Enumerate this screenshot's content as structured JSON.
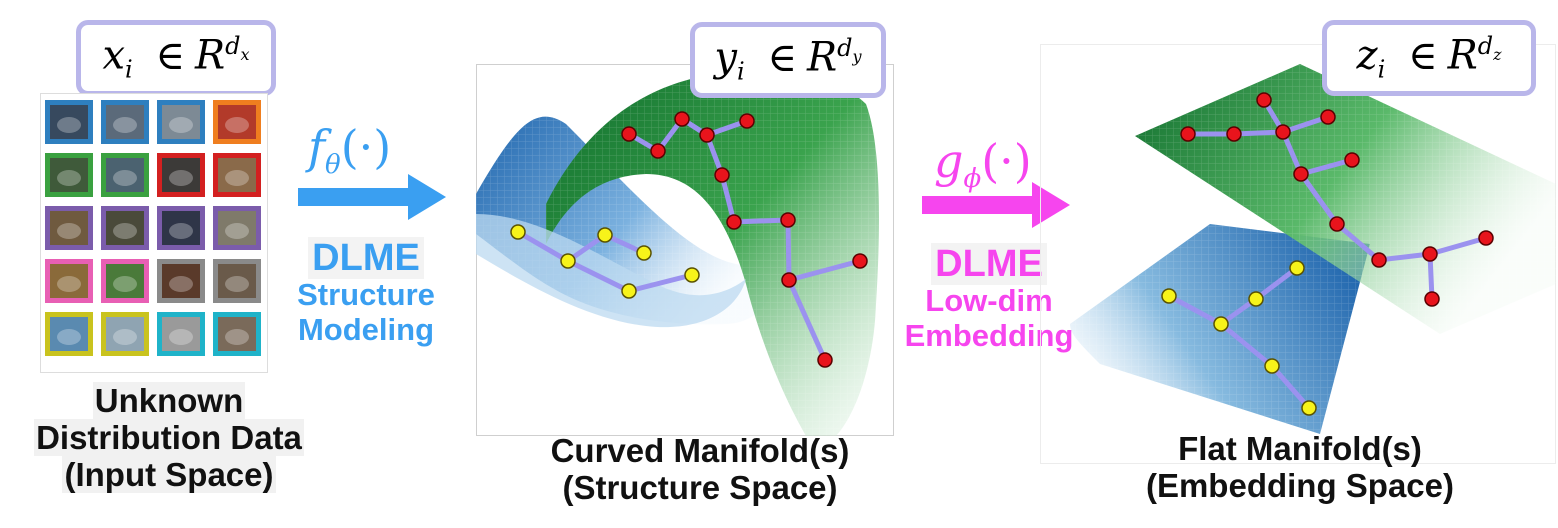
{
  "input_space": {
    "formula_var": "x",
    "formula_sub": "i",
    "formula_in": "∈",
    "formula_set": "R",
    "formula_exp_base": "d",
    "formula_exp_sub": "x",
    "caption_line1": "Unknown",
    "caption_line2": "Distribution Data",
    "caption_line3": "(Input Space)"
  },
  "arrow_f": {
    "func": "f",
    "param": "θ",
    "args": "(·)",
    "color": "#3a9ff1",
    "label_line1": "DLME",
    "label_line2": "Structure",
    "label_line3": "Modeling"
  },
  "structure_space": {
    "formula_var": "y",
    "formula_sub": "i",
    "formula_in": "∈",
    "formula_set": "R",
    "formula_exp_base": "d",
    "formula_exp_sub": "y",
    "caption_line1": "Curved Manifold(s)",
    "caption_line2": "(Structure Space)"
  },
  "arrow_g": {
    "func": "g",
    "param": "ϕ",
    "args": "(·)",
    "color": "#f645ee",
    "label_line1": "DLME",
    "label_line2": "Low-dim",
    "label_line3": "Embedding"
  },
  "embedding_space": {
    "formula_var": "z",
    "formula_sub": "i",
    "formula_in": "∈",
    "formula_set": "R",
    "formula_exp_base": "d",
    "formula_exp_sub": "z",
    "caption_line1": "Flat Manifold(s)",
    "caption_line2": "(Embedding Space)"
  },
  "colors": {
    "formula_border": "#b9b6ea",
    "green_manifold": "#1f8a3a",
    "blue_manifold": "#2b79c2",
    "red_node": "#e8141c",
    "yellow_node": "#f7f31a",
    "edge": "#9b92ef"
  },
  "image_grid_frame_colors": [
    "#2e7fbf",
    "#2e7fbf",
    "#2e7fbf",
    "#ef7e1f",
    "#3aa140",
    "#3aa140",
    "#d32020",
    "#d32020",
    "#7b5cab",
    "#7b5cab",
    "#7b5cab",
    "#7b5cab",
    "#e85fb4",
    "#e85fb4",
    "#8a8a8a",
    "#8a8a8a",
    "#c9c31e",
    "#c9c31e",
    "#1fb3c9",
    "#1fb3c9"
  ]
}
